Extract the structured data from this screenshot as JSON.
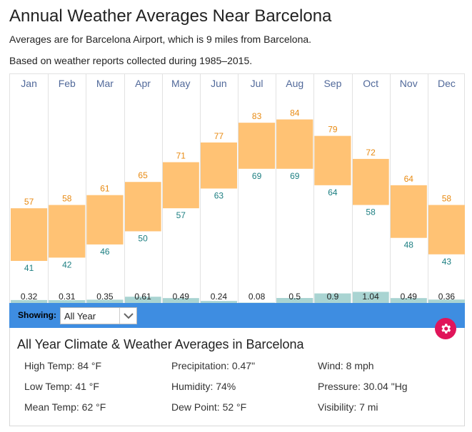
{
  "header": {
    "title": "Annual Weather Averages Near Barcelona",
    "subtitle1": "Averages are for Barcelona Airport, which is 9 miles from Barcelona.",
    "subtitle2": "Based on weather reports collected during 1985–2015."
  },
  "chart_data": {
    "type": "bar",
    "title": "Annual Weather Averages Near Barcelona",
    "categories": [
      "Jan",
      "Feb",
      "Mar",
      "Apr",
      "May",
      "Jun",
      "Jul",
      "Aug",
      "Sep",
      "Oct",
      "Nov",
      "Dec"
    ],
    "series": [
      {
        "name": "High Temp (°F)",
        "values": [
          57,
          58,
          61,
          65,
          71,
          77,
          83,
          84,
          79,
          72,
          64,
          58
        ]
      },
      {
        "name": "Low Temp (°F)",
        "values": [
          41,
          42,
          46,
          50,
          57,
          63,
          69,
          69,
          64,
          58,
          48,
          43
        ]
      },
      {
        "name": "Precipitation (in)",
        "values": [
          0.32,
          0.31,
          0.35,
          0.61,
          0.49,
          0.24,
          0.08,
          0.5,
          0.9,
          1.04,
          0.49,
          0.36
        ]
      }
    ],
    "precip_labels": [
      "0.32",
      "0.31",
      "0.35",
      "0.61",
      "0.49",
      "0.24",
      "0.08",
      "0.5",
      "0.9",
      "1.04",
      "0.49",
      "0.36"
    ],
    "temp_range": [
      28,
      93
    ],
    "colors": {
      "temp_bar": "#ffc274",
      "high_label": "#e88a12",
      "low_label": "#1d7f82",
      "month_label": "#51699a",
      "precip_bar": "#a9d4d2"
    }
  },
  "showing": {
    "label": "Showing:",
    "selected": "All Year"
  },
  "summary": {
    "title": "All Year Climate & Weather Averages in Barcelona",
    "high_temp": "High Temp: 84 °F",
    "low_temp": "Low Temp: 41 °F",
    "mean_temp": "Mean Temp: 62 °F",
    "precipitation": "Precipitation: 0.47\"",
    "humidity": "Humidity: 74%",
    "dew_point": "Dew Point: 52 °F",
    "wind": "Wind: 8 mph",
    "pressure": "Pressure: 30.04 \"Hg",
    "visibility": "Visibility: 7 mi"
  }
}
